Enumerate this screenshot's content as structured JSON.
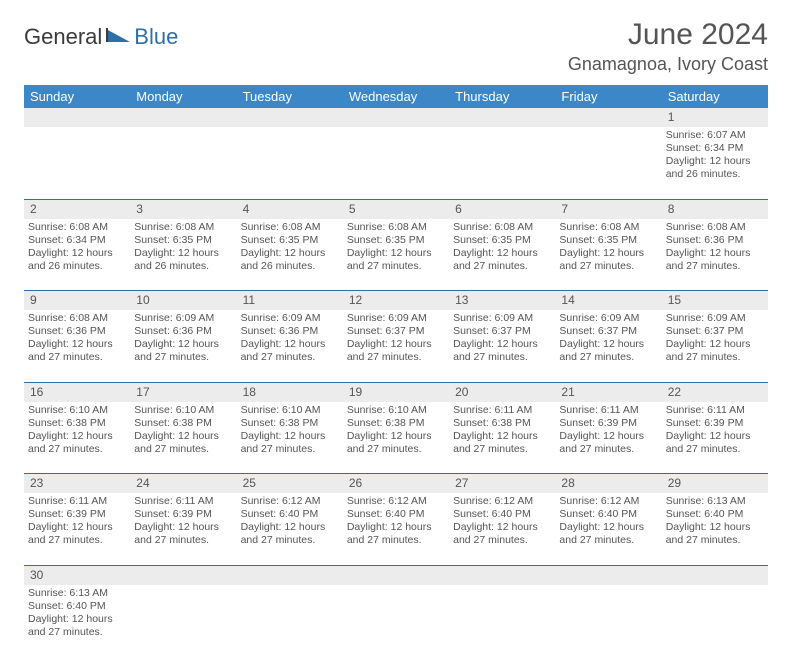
{
  "header": {
    "logo_general": "General",
    "logo_blue": "Blue",
    "month_title": "June 2024",
    "location": "Gnamagnoa, Ivory Coast"
  },
  "colors": {
    "header_bg": "#3b87c8",
    "header_text": "#ffffff",
    "daynum_bg": "#ececec",
    "cell_border": "#2f6fa8",
    "logo_accent": "#2f6fa8",
    "text": "#555555"
  },
  "weekdays": [
    "Sunday",
    "Monday",
    "Tuesday",
    "Wednesday",
    "Thursday",
    "Friday",
    "Saturday"
  ],
  "weeks": [
    {
      "nums": [
        "",
        "",
        "",
        "",
        "",
        "",
        "1"
      ],
      "cells": [
        null,
        null,
        null,
        null,
        null,
        null,
        {
          "sunrise": "Sunrise: 6:07 AM",
          "sunset": "Sunset: 6:34 PM",
          "day1": "Daylight: 12 hours",
          "day2": "and 26 minutes."
        }
      ]
    },
    {
      "nums": [
        "2",
        "3",
        "4",
        "5",
        "6",
        "7",
        "8"
      ],
      "cells": [
        {
          "sunrise": "Sunrise: 6:08 AM",
          "sunset": "Sunset: 6:34 PM",
          "day1": "Daylight: 12 hours",
          "day2": "and 26 minutes."
        },
        {
          "sunrise": "Sunrise: 6:08 AM",
          "sunset": "Sunset: 6:35 PM",
          "day1": "Daylight: 12 hours",
          "day2": "and 26 minutes."
        },
        {
          "sunrise": "Sunrise: 6:08 AM",
          "sunset": "Sunset: 6:35 PM",
          "day1": "Daylight: 12 hours",
          "day2": "and 26 minutes."
        },
        {
          "sunrise": "Sunrise: 6:08 AM",
          "sunset": "Sunset: 6:35 PM",
          "day1": "Daylight: 12 hours",
          "day2": "and 27 minutes."
        },
        {
          "sunrise": "Sunrise: 6:08 AM",
          "sunset": "Sunset: 6:35 PM",
          "day1": "Daylight: 12 hours",
          "day2": "and 27 minutes."
        },
        {
          "sunrise": "Sunrise: 6:08 AM",
          "sunset": "Sunset: 6:35 PM",
          "day1": "Daylight: 12 hours",
          "day2": "and 27 minutes."
        },
        {
          "sunrise": "Sunrise: 6:08 AM",
          "sunset": "Sunset: 6:36 PM",
          "day1": "Daylight: 12 hours",
          "day2": "and 27 minutes."
        }
      ]
    },
    {
      "nums": [
        "9",
        "10",
        "11",
        "12",
        "13",
        "14",
        "15"
      ],
      "cells": [
        {
          "sunrise": "Sunrise: 6:08 AM",
          "sunset": "Sunset: 6:36 PM",
          "day1": "Daylight: 12 hours",
          "day2": "and 27 minutes."
        },
        {
          "sunrise": "Sunrise: 6:09 AM",
          "sunset": "Sunset: 6:36 PM",
          "day1": "Daylight: 12 hours",
          "day2": "and 27 minutes."
        },
        {
          "sunrise": "Sunrise: 6:09 AM",
          "sunset": "Sunset: 6:36 PM",
          "day1": "Daylight: 12 hours",
          "day2": "and 27 minutes."
        },
        {
          "sunrise": "Sunrise: 6:09 AM",
          "sunset": "Sunset: 6:37 PM",
          "day1": "Daylight: 12 hours",
          "day2": "and 27 minutes."
        },
        {
          "sunrise": "Sunrise: 6:09 AM",
          "sunset": "Sunset: 6:37 PM",
          "day1": "Daylight: 12 hours",
          "day2": "and 27 minutes."
        },
        {
          "sunrise": "Sunrise: 6:09 AM",
          "sunset": "Sunset: 6:37 PM",
          "day1": "Daylight: 12 hours",
          "day2": "and 27 minutes."
        },
        {
          "sunrise": "Sunrise: 6:09 AM",
          "sunset": "Sunset: 6:37 PM",
          "day1": "Daylight: 12 hours",
          "day2": "and 27 minutes."
        }
      ]
    },
    {
      "nums": [
        "16",
        "17",
        "18",
        "19",
        "20",
        "21",
        "22"
      ],
      "cells": [
        {
          "sunrise": "Sunrise: 6:10 AM",
          "sunset": "Sunset: 6:38 PM",
          "day1": "Daylight: 12 hours",
          "day2": "and 27 minutes."
        },
        {
          "sunrise": "Sunrise: 6:10 AM",
          "sunset": "Sunset: 6:38 PM",
          "day1": "Daylight: 12 hours",
          "day2": "and 27 minutes."
        },
        {
          "sunrise": "Sunrise: 6:10 AM",
          "sunset": "Sunset: 6:38 PM",
          "day1": "Daylight: 12 hours",
          "day2": "and 27 minutes."
        },
        {
          "sunrise": "Sunrise: 6:10 AM",
          "sunset": "Sunset: 6:38 PM",
          "day1": "Daylight: 12 hours",
          "day2": "and 27 minutes."
        },
        {
          "sunrise": "Sunrise: 6:11 AM",
          "sunset": "Sunset: 6:38 PM",
          "day1": "Daylight: 12 hours",
          "day2": "and 27 minutes."
        },
        {
          "sunrise": "Sunrise: 6:11 AM",
          "sunset": "Sunset: 6:39 PM",
          "day1": "Daylight: 12 hours",
          "day2": "and 27 minutes."
        },
        {
          "sunrise": "Sunrise: 6:11 AM",
          "sunset": "Sunset: 6:39 PM",
          "day1": "Daylight: 12 hours",
          "day2": "and 27 minutes."
        }
      ]
    },
    {
      "nums": [
        "23",
        "24",
        "25",
        "26",
        "27",
        "28",
        "29"
      ],
      "cells": [
        {
          "sunrise": "Sunrise: 6:11 AM",
          "sunset": "Sunset: 6:39 PM",
          "day1": "Daylight: 12 hours",
          "day2": "and 27 minutes."
        },
        {
          "sunrise": "Sunrise: 6:11 AM",
          "sunset": "Sunset: 6:39 PM",
          "day1": "Daylight: 12 hours",
          "day2": "and 27 minutes."
        },
        {
          "sunrise": "Sunrise: 6:12 AM",
          "sunset": "Sunset: 6:40 PM",
          "day1": "Daylight: 12 hours",
          "day2": "and 27 minutes."
        },
        {
          "sunrise": "Sunrise: 6:12 AM",
          "sunset": "Sunset: 6:40 PM",
          "day1": "Daylight: 12 hours",
          "day2": "and 27 minutes."
        },
        {
          "sunrise": "Sunrise: 6:12 AM",
          "sunset": "Sunset: 6:40 PM",
          "day1": "Daylight: 12 hours",
          "day2": "and 27 minutes."
        },
        {
          "sunrise": "Sunrise: 6:12 AM",
          "sunset": "Sunset: 6:40 PM",
          "day1": "Daylight: 12 hours",
          "day2": "and 27 minutes."
        },
        {
          "sunrise": "Sunrise: 6:13 AM",
          "sunset": "Sunset: 6:40 PM",
          "day1": "Daylight: 12 hours",
          "day2": "and 27 minutes."
        }
      ]
    },
    {
      "nums": [
        "30",
        "",
        "",
        "",
        "",
        "",
        ""
      ],
      "cells": [
        {
          "sunrise": "Sunrise: 6:13 AM",
          "sunset": "Sunset: 6:40 PM",
          "day1": "Daylight: 12 hours",
          "day2": "and 27 minutes."
        },
        null,
        null,
        null,
        null,
        null,
        null
      ]
    }
  ]
}
